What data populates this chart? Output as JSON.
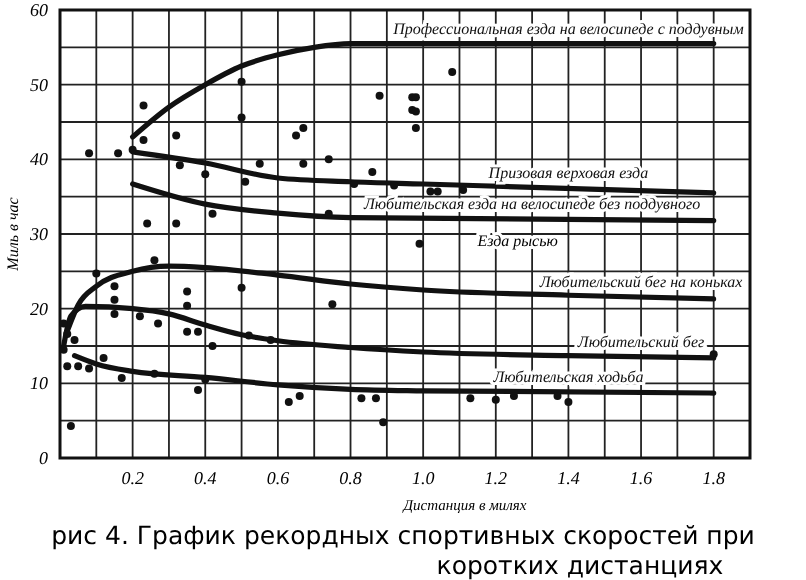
{
  "chart_data": {
    "type": "line",
    "title": "рис 4. График рекордных спортивных скоростей при коротких дистанциях",
    "xlabel": "Дистанция в милях",
    "ylabel": "Миль в час",
    "xlim": [
      0,
      1.9
    ],
    "ylim": [
      0,
      60
    ],
    "xticks": [
      {
        "value": 0.1,
        "label": null
      },
      0.2,
      {
        "value": 0.3,
        "label": null
      },
      0.4,
      {
        "value": 0.5,
        "label": null
      },
      0.6,
      {
        "value": 0.7,
        "label": null
      },
      0.8,
      {
        "value": 0.9,
        "label": null
      },
      {
        "value": 1,
        "label": "1.0"
      },
      {
        "value": 1.1,
        "label": null
      },
      1.2,
      {
        "value": 1.3,
        "label": null
      },
      1.4,
      {
        "value": 1.5,
        "label": null
      },
      1.6,
      {
        "value": 1.7,
        "label": null
      },
      1.8,
      {
        "value": 1.9,
        "label": null
      }
    ],
    "yticks": [
      0,
      {
        "value": 5,
        "label": null
      },
      10,
      {
        "value": 15,
        "label": null
      },
      20,
      {
        "value": 25,
        "label": null
      },
      30,
      {
        "value": 35,
        "label": null
      },
      40,
      {
        "value": 45,
        "label": null
      },
      50,
      {
        "value": 55,
        "label": null
      },
      60
    ],
    "grid": true,
    "legend": false,
    "series": [
      {
        "name": "Профессиональная езда на велосипеде с поддувным",
        "color": "#111111",
        "x": [
          0.2,
          0.3,
          0.4,
          0.5,
          0.6,
          0.7,
          0.8,
          1.0,
          1.8
        ],
        "values": [
          43,
          47,
          50,
          52.5,
          54,
          55,
          55.5,
          55.5,
          55.5
        ]
      },
      {
        "name": "Призовая верховая езда",
        "color": "#111111",
        "x": [
          0.2,
          0.4,
          0.6,
          0.8,
          1.0,
          1.8
        ],
        "values": [
          41,
          39.5,
          37.5,
          37,
          36.7,
          35.5
        ]
      },
      {
        "name": "Любительская езда на велосипеде без поддувного",
        "color": "#111111",
        "x": [
          0.2,
          0.4,
          0.6,
          0.8,
          1.8
        ],
        "values": [
          36.7,
          34,
          32.8,
          32.2,
          31.8
        ]
      },
      {
        "name": "Любительский бег на коньках",
        "color": "#111111",
        "x": [
          0.02,
          0.05,
          0.1,
          0.2,
          0.3,
          0.4,
          0.6,
          0.8,
          1.0,
          1.4,
          1.8
        ],
        "values": [
          17,
          20.5,
          23,
          25,
          25.7,
          25.5,
          24.5,
          23.3,
          22.5,
          21.8,
          21.3
        ]
      },
      {
        "name": "Любительский бег",
        "color": "#111111",
        "x": [
          0.01,
          0.03,
          0.07,
          0.2,
          0.3,
          0.4,
          0.5,
          0.6,
          0.8,
          1.0,
          1.4,
          1.8
        ],
        "values": [
          15,
          19,
          20.3,
          20,
          19.3,
          17.8,
          16.5,
          15.7,
          14.8,
          14.2,
          13.7,
          13.4
        ]
      },
      {
        "name": "Любительская ходьба",
        "color": "#111111",
        "x": [
          0.04,
          0.1,
          0.2,
          0.4,
          0.6,
          0.8,
          1.0,
          1.8
        ],
        "values": [
          13.7,
          12.6,
          11.6,
          10.8,
          9.8,
          9.2,
          9,
          8.7
        ]
      },
      {
        "type": "scatter",
        "color": "#111111",
        "marker": "circle",
        "x": [
          0.08,
          0.16,
          0.2,
          0.23,
          0.23,
          0.32,
          0.33,
          0.4,
          0.42,
          0.24,
          0.32,
          0.5,
          0.5,
          0.51,
          0.55,
          0.65,
          0.67,
          0.67,
          0.74,
          0.74,
          0.81,
          0.86,
          0.92,
          0.88,
          0.97,
          0.97,
          0.26,
          0.1,
          0.15,
          0.35,
          0.5,
          1.08,
          0.98,
          0.98,
          0.98,
          1.02,
          1.04,
          1.11,
          0.99,
          0.01,
          0.02,
          0.01,
          0.02,
          0.05,
          0.08,
          0.12,
          0.03,
          0.04,
          0.15,
          0.15,
          0.17,
          0.22,
          0.27,
          0.26,
          0.35,
          0.35,
          0.38,
          0.42,
          0.4,
          0.38,
          0.52,
          0.58,
          0.75,
          0.63,
          0.66,
          0.83,
          0.87,
          0.89,
          1.13,
          1.2,
          1.25,
          1.37,
          1.4,
          1.8
        ],
        "values": [
          40.8,
          40.8,
          41.3,
          47.2,
          42.6,
          43.2,
          39.2,
          38,
          32.7,
          31.4,
          31.4,
          50.4,
          45.6,
          37,
          39.4,
          43.2,
          44.2,
          39.4,
          40,
          32.7,
          36.7,
          38.3,
          36.5,
          48.5,
          48.3,
          46.6,
          26.5,
          24.7,
          23,
          22.3,
          22.8,
          51.7,
          48.3,
          46.4,
          44.2,
          35.7,
          35.7,
          35.9,
          28.7,
          18,
          16.6,
          14.5,
          12.3,
          12.3,
          12,
          13.4,
          4.3,
          15.8,
          21.2,
          19.3,
          10.7,
          19,
          18,
          11.3,
          20.4,
          16.9,
          16.9,
          15,
          10.5,
          9.1,
          16.4,
          15.8,
          20.6,
          7.5,
          8.3,
          8,
          8,
          4.8,
          8,
          7.8,
          8.3,
          8.3,
          7.5,
          13.9
        ]
      }
    ],
    "annotations": [
      "Езда рысью"
    ]
  }
}
